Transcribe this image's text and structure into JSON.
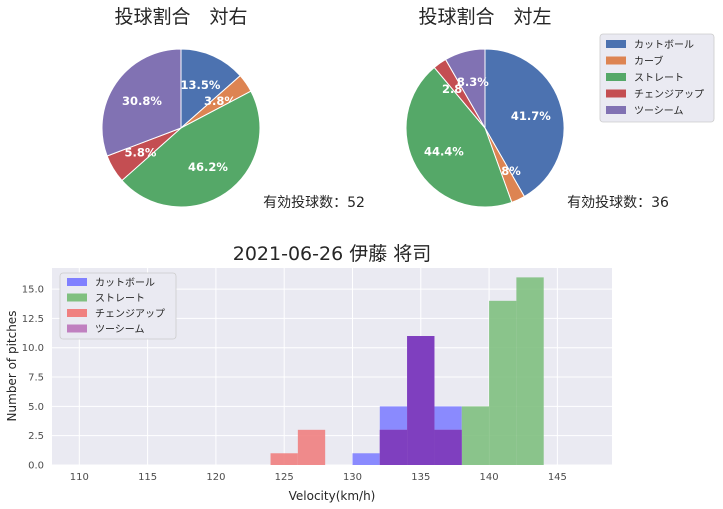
{
  "colors": {
    "cutter": "#4c72b0",
    "curve": "#dd8452",
    "straight": "#55a868",
    "changeup": "#c44e52",
    "twoseam": "#8172b3",
    "hist_cutter": "#8080ff",
    "hist_straight": "#80c080",
    "hist_changeup": "#f08080",
    "hist_twoseam": "#c080c0",
    "hist_overlap": "#7f3fbf",
    "plot_bg": "#eaeaf2",
    "grid": "#ffffff"
  },
  "chart_data": [
    {
      "type": "pie",
      "title": "投球割合　対右",
      "count_text": "有効投球数：52",
      "slices": [
        {
          "name": "カットボール",
          "value": 13.5,
          "label": "13.5%",
          "color_key": "cutter"
        },
        {
          "name": "カーブ",
          "value": 3.8,
          "label": "3.8%",
          "color_key": "curve"
        },
        {
          "name": "ストレート",
          "value": 46.2,
          "label": "46.2%",
          "color_key": "straight"
        },
        {
          "name": "チェンジアップ",
          "value": 5.8,
          "label": "5.8%",
          "color_key": "changeup"
        },
        {
          "name": "ツーシーム",
          "value": 30.8,
          "label": "30.8%",
          "color_key": "twoseam"
        }
      ]
    },
    {
      "type": "pie",
      "title": "投球割合　対左",
      "count_text": "有効投球数：36",
      "slices": [
        {
          "name": "カットボール",
          "value": 41.7,
          "label": "41.7%",
          "color_key": "cutter"
        },
        {
          "name": "カーブ",
          "value": 2.8,
          "label": "2.8%",
          "color_key": "curve"
        },
        {
          "name": "ストレート",
          "value": 44.4,
          "label": "44.4%",
          "color_key": "straight"
        },
        {
          "name": "チェンジアップ",
          "value": 2.8,
          "label": "2.8%",
          "color_key": "changeup"
        },
        {
          "name": "ツーシーム",
          "value": 8.3,
          "label": "8.3%",
          "color_key": "twoseam"
        }
      ],
      "legend": [
        "カットボール",
        "カーブ",
        "ストレート",
        "チェンジアップ",
        "ツーシーム"
      ]
    },
    {
      "type": "bar",
      "subtype": "histogram",
      "title": "2021-06-26 伊藤 将司",
      "xlabel": "Velocity(km/h)",
      "ylabel": "Number of pitches",
      "xlim": [
        108,
        149
      ],
      "ylim": [
        0,
        16.8
      ],
      "xticks": [
        110,
        115,
        120,
        125,
        130,
        135,
        140,
        145
      ],
      "yticks": [
        0.0,
        2.5,
        5.0,
        7.5,
        10.0,
        12.5,
        15.0
      ],
      "ytick_labels": [
        "0.0",
        "2.5",
        "5.0",
        "7.5",
        "10.0",
        "12.5",
        "15.0"
      ],
      "bin_width": 2,
      "legend": [
        "カットボール",
        "ストレート",
        "チェンジアップ",
        "ツーシーム"
      ],
      "series": [
        {
          "name": "カットボール",
          "color_key": "hist_cutter",
          "bins": [
            {
              "x0": 130,
              "count": 1
            },
            {
              "x0": 132,
              "count": 5
            },
            {
              "x0": 134,
              "count": 11
            },
            {
              "x0": 136,
              "count": 5
            }
          ]
        },
        {
          "name": "ストレート",
          "color_key": "hist_straight",
          "bins": [
            {
              "x0": 138,
              "count": 5
            },
            {
              "x0": 140,
              "count": 14
            },
            {
              "x0": 142,
              "count": 16
            }
          ]
        },
        {
          "name": "チェンジアップ",
          "color_key": "hist_changeup",
          "bins": [
            {
              "x0": 124,
              "count": 1
            },
            {
              "x0": 126,
              "count": 3
            }
          ]
        },
        {
          "name": "ツーシーム",
          "color_key": "hist_twoseam",
          "bins": [
            {
              "x0": 132,
              "count": 3
            },
            {
              "x0": 134,
              "count": 11
            },
            {
              "x0": 136,
              "count": 3
            }
          ]
        }
      ]
    }
  ]
}
